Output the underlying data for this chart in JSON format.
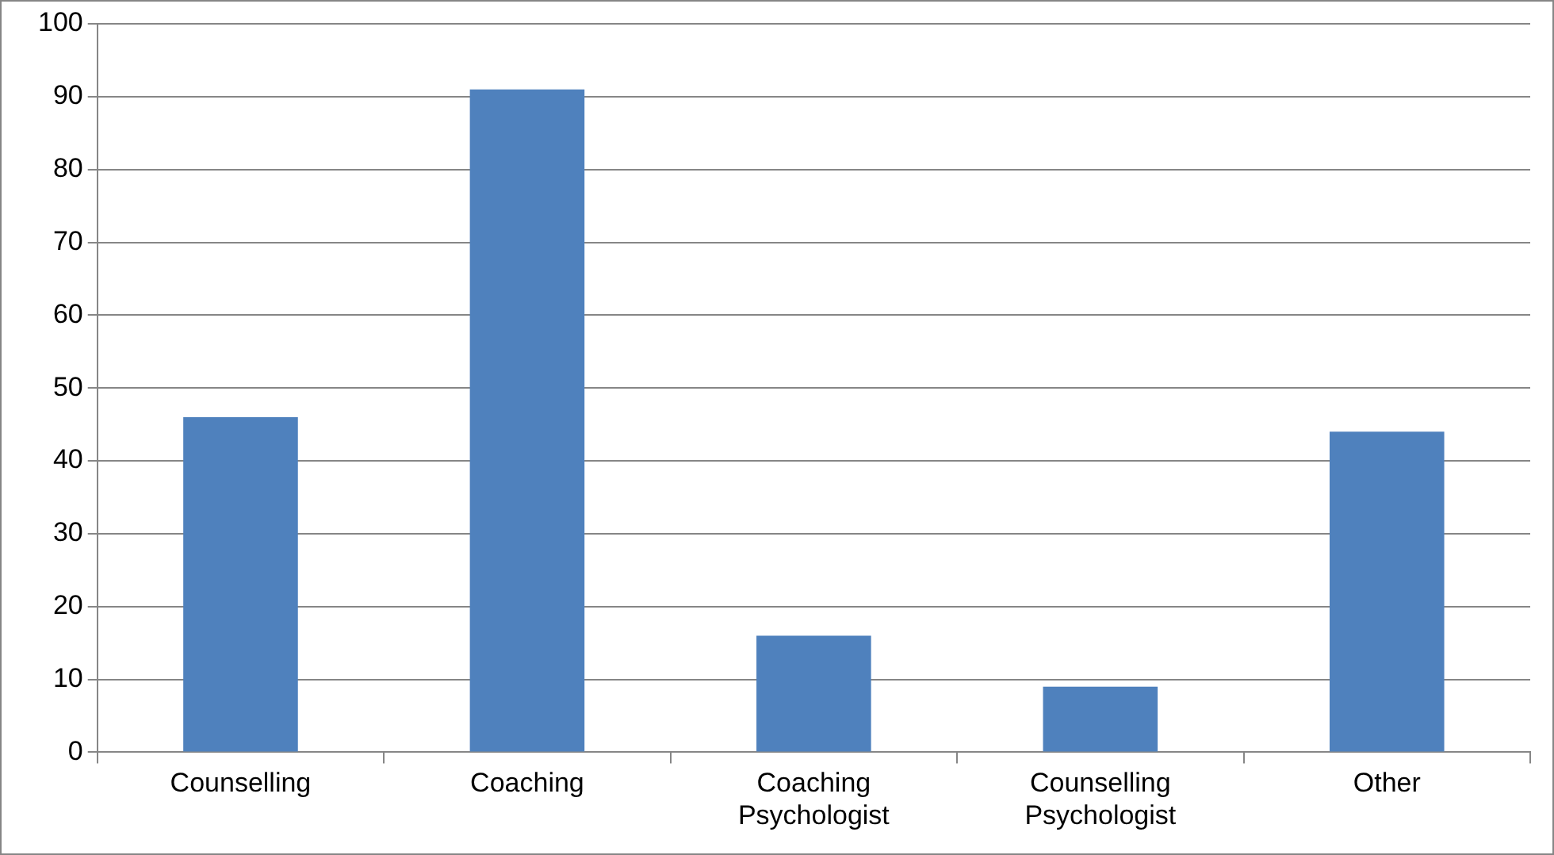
{
  "chart_data": {
    "type": "bar",
    "categories": [
      "Counselling",
      "Coaching",
      "Coaching Psychologist",
      "Counselling Psychologist",
      "Other"
    ],
    "values": [
      46,
      91,
      16,
      9,
      44
    ],
    "color": "#4f81bd",
    "ylim": [
      0,
      100
    ],
    "yticks": [
      0,
      10,
      20,
      30,
      40,
      50,
      60,
      70,
      80,
      90,
      100
    ],
    "grid": "y"
  }
}
